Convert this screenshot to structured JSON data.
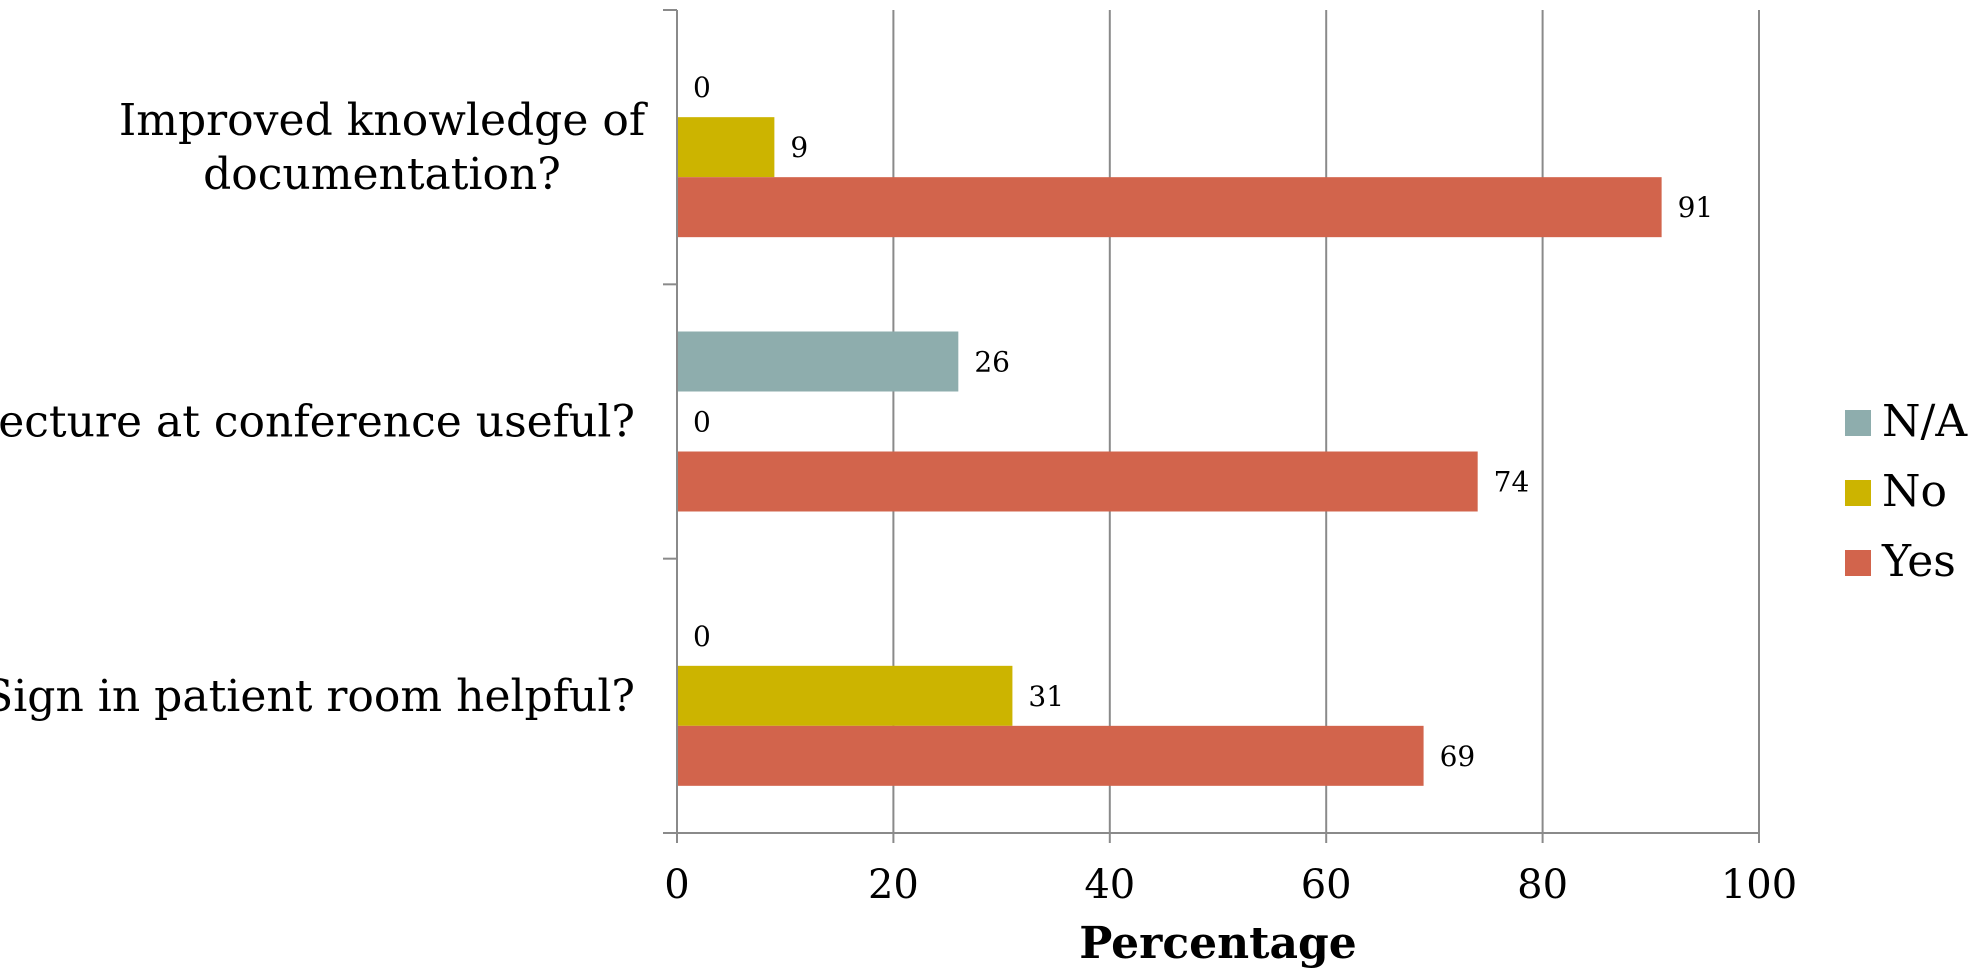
{
  "chart_data": {
    "type": "bar",
    "orientation": "horizontal",
    "categories": [
      [
        "Improved knowledge of",
        "documentation?"
      ],
      [
        "Lecture at conference useful?"
      ],
      [
        "Sign in patient room helpful?"
      ]
    ],
    "series": [
      {
        "name": "N/A",
        "color": "#8EADAD",
        "values": [
          0,
          26,
          0
        ]
      },
      {
        "name": "No",
        "color": "#CCB400",
        "values": [
          9,
          0,
          31
        ]
      },
      {
        "name": "Yes",
        "color": "#D2644C",
        "values": [
          91,
          74,
          69
        ]
      }
    ],
    "xlabel": "Percentage",
    "xlim": [
      0,
      100
    ],
    "xticks": [
      0,
      20,
      40,
      60,
      80,
      100
    ],
    "grid": "vertical",
    "legend": "right"
  }
}
